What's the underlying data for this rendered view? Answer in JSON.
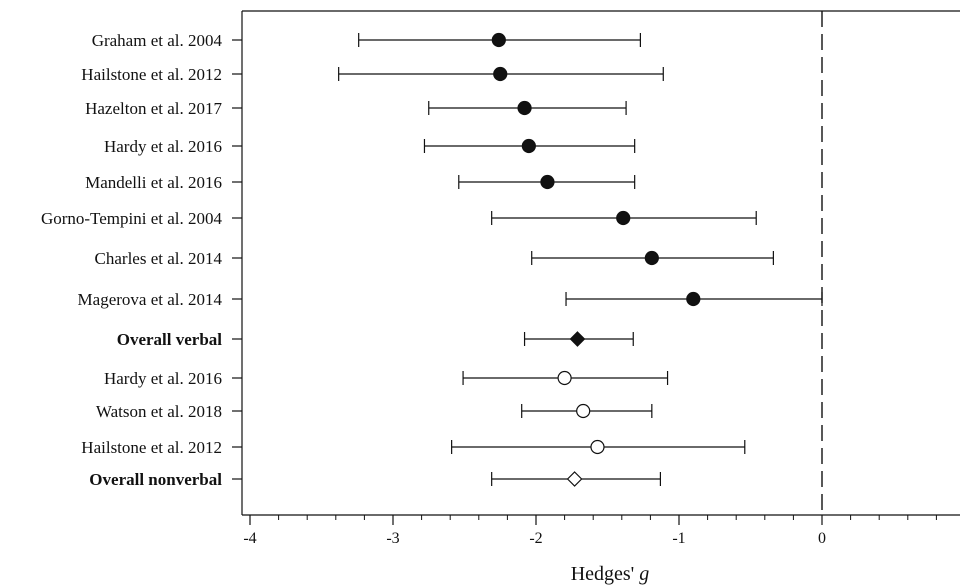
{
  "chart_data": {
    "type": "forest",
    "xlabel": "Hedges' ",
    "xlabel_italic": "g",
    "xlim": [
      -4,
      1
    ],
    "xticks": [
      {
        "value": -4,
        "label": "-4"
      },
      {
        "value": -3,
        "label": "-3"
      },
      {
        "value": -2,
        "label": "-2"
      },
      {
        "value": -1,
        "label": "-1"
      },
      {
        "value": 0,
        "label": "0"
      }
    ],
    "reference_line": 0,
    "rows": [
      {
        "label": "Graham et al. 2004",
        "estimate": -2.26,
        "lower": -3.24,
        "upper": -1.27,
        "marker": "filled-circle",
        "bold": false
      },
      {
        "label": "Hailstone et al. 2012",
        "estimate": -2.25,
        "lower": -3.38,
        "upper": -1.11,
        "marker": "filled-circle",
        "bold": false
      },
      {
        "label": "Hazelton et al. 2017",
        "estimate": -2.08,
        "lower": -2.75,
        "upper": -1.37,
        "marker": "filled-circle",
        "bold": false
      },
      {
        "label": "Hardy et al. 2016",
        "estimate": -2.05,
        "lower": -2.78,
        "upper": -1.31,
        "marker": "filled-circle",
        "bold": false
      },
      {
        "label": "Mandelli et al. 2016",
        "estimate": -1.92,
        "lower": -2.54,
        "upper": -1.31,
        "marker": "filled-circle",
        "bold": false
      },
      {
        "label": "Gorno-Tempini et al. 2004",
        "estimate": -1.39,
        "lower": -2.31,
        "upper": -0.46,
        "marker": "filled-circle",
        "bold": false
      },
      {
        "label": "Charles et al. 2014",
        "estimate": -1.19,
        "lower": -2.03,
        "upper": -0.34,
        "marker": "filled-circle",
        "bold": false
      },
      {
        "label": "Magerova et al. 2014",
        "estimate": -0.9,
        "lower": -1.79,
        "upper": 0.0,
        "marker": "filled-circle",
        "bold": false
      },
      {
        "label": "Overall verbal",
        "estimate": -1.71,
        "lower": -2.08,
        "upper": -1.32,
        "marker": "filled-diamond",
        "bold": true
      },
      {
        "label": "Hardy et al. 2016",
        "estimate": -1.8,
        "lower": -2.51,
        "upper": -1.08,
        "marker": "open-circle",
        "bold": false
      },
      {
        "label": "Watson et al. 2018",
        "estimate": -1.67,
        "lower": -2.1,
        "upper": -1.19,
        "marker": "open-circle",
        "bold": false
      },
      {
        "label": "Hailstone et al. 2012",
        "estimate": -1.57,
        "lower": -2.59,
        "upper": -0.54,
        "marker": "open-circle",
        "bold": false
      },
      {
        "label": "Overall nonverbal",
        "estimate": -1.73,
        "lower": -2.31,
        "upper": -1.13,
        "marker": "open-diamond",
        "bold": true
      }
    ]
  }
}
